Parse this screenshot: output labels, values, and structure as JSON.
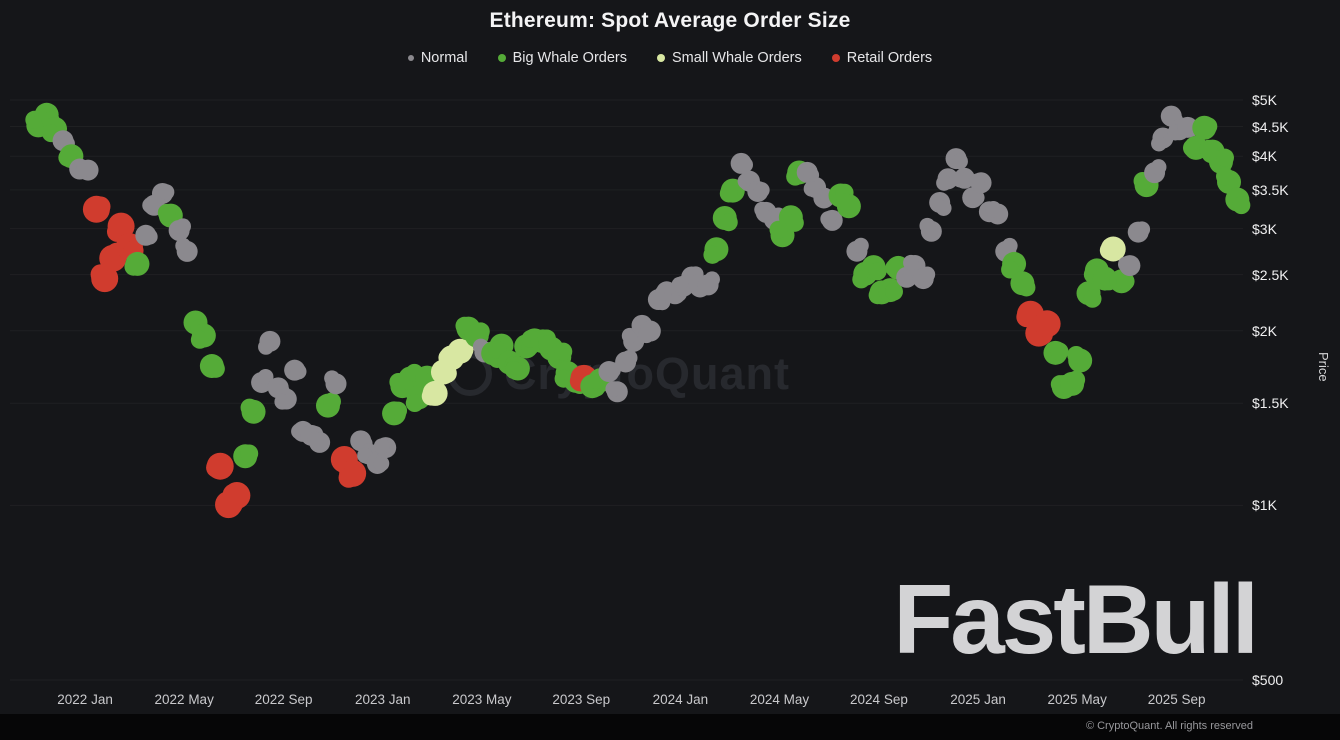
{
  "chart": {
    "title": "Ethereum: Spot Average Order Size",
    "y_axis_title": "Price"
  },
  "legend": {
    "items": [
      {
        "label": "Normal",
        "color": "#8b898e",
        "key": "N"
      },
      {
        "label": "Big Whale Orders",
        "color": "#55ab38",
        "key": "B"
      },
      {
        "label": "Small Whale Orders",
        "color": "#d8e7a2",
        "key": "S"
      },
      {
        "label": "Retail Orders",
        "color": "#d03c2e",
        "key": "R"
      }
    ]
  },
  "watermarks": {
    "center": "CryptoQuant",
    "brand": "FastBull"
  },
  "footer": {
    "copyright": "© CryptoQuant. All rights reserved"
  },
  "chart_data": {
    "type": "scatter",
    "title": "Ethereum: Spot Average Order Size",
    "xlabel": "",
    "ylabel": "Price",
    "y_scale": "log",
    "y_unit": "USD",
    "ylim": [
      500,
      5000
    ],
    "xlim": [
      2021.815,
      2025.89
    ],
    "grid": "horizontal-faint",
    "legend_position": "top",
    "series_key": {
      "N": "Normal",
      "B": "Big Whale Orders",
      "S": "Small Whale Orders",
      "R": "Retail Orders"
    },
    "y_ticks": [
      {
        "label": "$5K",
        "value": 5000
      },
      {
        "label": "$4.5K",
        "value": 4500
      },
      {
        "label": "$4K",
        "value": 4000
      },
      {
        "label": "$3.5K",
        "value": 3500
      },
      {
        "label": "$3K",
        "value": 3000
      },
      {
        "label": "$2.5K",
        "value": 2500
      },
      {
        "label": "$2K",
        "value": 2000
      },
      {
        "label": "$1.5K",
        "value": 1500
      },
      {
        "label": "$1K",
        "value": 1000
      },
      {
        "label": "$500",
        "value": 500
      }
    ],
    "x_ticks": [
      {
        "label": "2022 Jan",
        "t": 2022.0
      },
      {
        "label": "2022 May",
        "t": 2022.333
      },
      {
        "label": "2022 Sep",
        "t": 2022.667
      },
      {
        "label": "2023 Jan",
        "t": 2023.0
      },
      {
        "label": "2023 May",
        "t": 2023.333
      },
      {
        "label": "2023 Sep",
        "t": 2023.667
      },
      {
        "label": "2024 Jan",
        "t": 2024.0
      },
      {
        "label": "2024 May",
        "t": 2024.333
      },
      {
        "label": "2024 Sep",
        "t": 2024.667
      },
      {
        "label": "2025 Jan",
        "t": 2025.0
      },
      {
        "label": "2025 May",
        "t": 2025.333
      },
      {
        "label": "2025 Sep",
        "t": 2025.667
      }
    ],
    "points": [
      [
        2021.843,
        4450,
        "B"
      ],
      [
        2021.871,
        4700,
        "B"
      ],
      [
        2021.899,
        4500,
        "B"
      ],
      [
        2021.926,
        4200,
        "N"
      ],
      [
        2021.954,
        4000,
        "B"
      ],
      [
        2021.982,
        3850,
        "N"
      ],
      [
        2022.01,
        3750,
        "N"
      ],
      [
        2022.038,
        3250,
        "R"
      ],
      [
        2022.066,
        2500,
        "R"
      ],
      [
        2022.093,
        2650,
        "R"
      ],
      [
        2022.121,
        3050,
        "R"
      ],
      [
        2022.149,
        2750,
        "R"
      ],
      [
        2022.176,
        2600,
        "B"
      ],
      [
        2022.204,
        2950,
        "N"
      ],
      [
        2022.232,
        3250,
        "N"
      ],
      [
        2022.26,
        3450,
        "N"
      ],
      [
        2022.288,
        3200,
        "B"
      ],
      [
        2022.316,
        2950,
        "N"
      ],
      [
        2022.343,
        2750,
        "N"
      ],
      [
        2022.371,
        2100,
        "B"
      ],
      [
        2022.399,
        1950,
        "B"
      ],
      [
        2022.426,
        1750,
        "B"
      ],
      [
        2022.454,
        1150,
        "R"
      ],
      [
        2022.482,
        1000,
        "R"
      ],
      [
        2022.51,
        1050,
        "R"
      ],
      [
        2022.538,
        1200,
        "B"
      ],
      [
        2022.566,
        1450,
        "B"
      ],
      [
        2022.593,
        1650,
        "N"
      ],
      [
        2022.621,
        1900,
        "N"
      ],
      [
        2022.649,
        1600,
        "N"
      ],
      [
        2022.676,
        1550,
        "N"
      ],
      [
        2022.704,
        1700,
        "N"
      ],
      [
        2022.732,
        1350,
        "N"
      ],
      [
        2022.76,
        1300,
        "N"
      ],
      [
        2022.788,
        1280,
        "N"
      ],
      [
        2022.816,
        1500,
        "B"
      ],
      [
        2022.843,
        1600,
        "N"
      ],
      [
        2022.871,
        1200,
        "R"
      ],
      [
        2022.899,
        1150,
        "R"
      ],
      [
        2022.926,
        1280,
        "N"
      ],
      [
        2022.954,
        1230,
        "N"
      ],
      [
        2022.982,
        1200,
        "N"
      ],
      [
        2023.01,
        1250,
        "N"
      ],
      [
        2023.038,
        1450,
        "B"
      ],
      [
        2023.066,
        1580,
        "B"
      ],
      [
        2023.093,
        1650,
        "B"
      ],
      [
        2023.121,
        1550,
        "B"
      ],
      [
        2023.149,
        1640,
        "B"
      ],
      [
        2023.176,
        1560,
        "S"
      ],
      [
        2023.204,
        1720,
        "S"
      ],
      [
        2023.232,
        1780,
        "S"
      ],
      [
        2023.26,
        1850,
        "S"
      ],
      [
        2023.288,
        2050,
        "B"
      ],
      [
        2023.316,
        1950,
        "B"
      ],
      [
        2023.343,
        1850,
        "N"
      ],
      [
        2023.371,
        1800,
        "B"
      ],
      [
        2023.399,
        1880,
        "B"
      ],
      [
        2023.426,
        1780,
        "B"
      ],
      [
        2023.454,
        1700,
        "B"
      ],
      [
        2023.482,
        1880,
        "B"
      ],
      [
        2023.51,
        1950,
        "B"
      ],
      [
        2023.538,
        1900,
        "B"
      ],
      [
        2023.566,
        1870,
        "B"
      ],
      [
        2023.593,
        1830,
        "B"
      ],
      [
        2023.621,
        1680,
        "B"
      ],
      [
        2023.649,
        1650,
        "B"
      ],
      [
        2023.676,
        1630,
        "R"
      ],
      [
        2023.704,
        1600,
        "B"
      ],
      [
        2023.732,
        1660,
        "B"
      ],
      [
        2023.76,
        1680,
        "N"
      ],
      [
        2023.788,
        1570,
        "N"
      ],
      [
        2023.816,
        1790,
        "N"
      ],
      [
        2023.843,
        1900,
        "N"
      ],
      [
        2023.871,
        2050,
        "N"
      ],
      [
        2023.899,
        2030,
        "N"
      ],
      [
        2023.926,
        2250,
        "N"
      ],
      [
        2023.954,
        2350,
        "N"
      ],
      [
        2023.982,
        2280,
        "N"
      ],
      [
        2024.01,
        2380,
        "N"
      ],
      [
        2024.038,
        2500,
        "N"
      ],
      [
        2024.066,
        2350,
        "N"
      ],
      [
        2024.093,
        2400,
        "N"
      ],
      [
        2024.121,
        2800,
        "B"
      ],
      [
        2024.149,
        3100,
        "B"
      ],
      [
        2024.176,
        3500,
        "B"
      ],
      [
        2024.204,
        3950,
        "N"
      ],
      [
        2024.232,
        3600,
        "N"
      ],
      [
        2024.26,
        3500,
        "N"
      ],
      [
        2024.288,
        3150,
        "N"
      ],
      [
        2024.316,
        3100,
        "N"
      ],
      [
        2024.343,
        2950,
        "B"
      ],
      [
        2024.371,
        3100,
        "B"
      ],
      [
        2024.399,
        3750,
        "B"
      ],
      [
        2024.426,
        3800,
        "N"
      ],
      [
        2024.454,
        3500,
        "N"
      ],
      [
        2024.482,
        3400,
        "N"
      ],
      [
        2024.51,
        3150,
        "N"
      ],
      [
        2024.538,
        3400,
        "B"
      ],
      [
        2024.566,
        3300,
        "B"
      ],
      [
        2024.593,
        2700,
        "N"
      ],
      [
        2024.621,
        2500,
        "B"
      ],
      [
        2024.649,
        2600,
        "B"
      ],
      [
        2024.676,
        2300,
        "B"
      ],
      [
        2024.704,
        2350,
        "B"
      ],
      [
        2024.732,
        2600,
        "B"
      ],
      [
        2024.76,
        2450,
        "N"
      ],
      [
        2024.788,
        2600,
        "N"
      ],
      [
        2024.816,
        2500,
        "N"
      ],
      [
        2024.843,
        2950,
        "N"
      ],
      [
        2024.871,
        3350,
        "N"
      ],
      [
        2024.899,
        3600,
        "N"
      ],
      [
        2024.926,
        3950,
        "N"
      ],
      [
        2024.954,
        3700,
        "N"
      ],
      [
        2024.982,
        3350,
        "N"
      ],
      [
        2025.01,
        3600,
        "N"
      ],
      [
        2025.038,
        3250,
        "N"
      ],
      [
        2025.066,
        3150,
        "N"
      ],
      [
        2025.093,
        2750,
        "N"
      ],
      [
        2025.121,
        2650,
        "B"
      ],
      [
        2025.149,
        2400,
        "B"
      ],
      [
        2025.176,
        2150,
        "R"
      ],
      [
        2025.204,
        1950,
        "R"
      ],
      [
        2025.232,
        2050,
        "R"
      ],
      [
        2025.26,
        1850,
        "B"
      ],
      [
        2025.288,
        1580,
        "B"
      ],
      [
        2025.316,
        1620,
        "B"
      ],
      [
        2025.343,
        1800,
        "B"
      ],
      [
        2025.371,
        2300,
        "B"
      ],
      [
        2025.399,
        2550,
        "B"
      ],
      [
        2025.426,
        2500,
        "B"
      ],
      [
        2025.454,
        2750,
        "S"
      ],
      [
        2025.482,
        2450,
        "B"
      ],
      [
        2025.51,
        2550,
        "N"
      ],
      [
        2025.538,
        2950,
        "N"
      ],
      [
        2025.566,
        3600,
        "B"
      ],
      [
        2025.593,
        3700,
        "N"
      ],
      [
        2025.621,
        4300,
        "N"
      ],
      [
        2025.649,
        4750,
        "N"
      ],
      [
        2025.676,
        4400,
        "N"
      ],
      [
        2025.704,
        4500,
        "N"
      ],
      [
        2025.732,
        4200,
        "B"
      ],
      [
        2025.76,
        4450,
        "B"
      ],
      [
        2025.788,
        4100,
        "B"
      ],
      [
        2025.816,
        3850,
        "B"
      ],
      [
        2025.843,
        3600,
        "B"
      ],
      [
        2025.871,
        3400,
        "B"
      ]
    ]
  }
}
